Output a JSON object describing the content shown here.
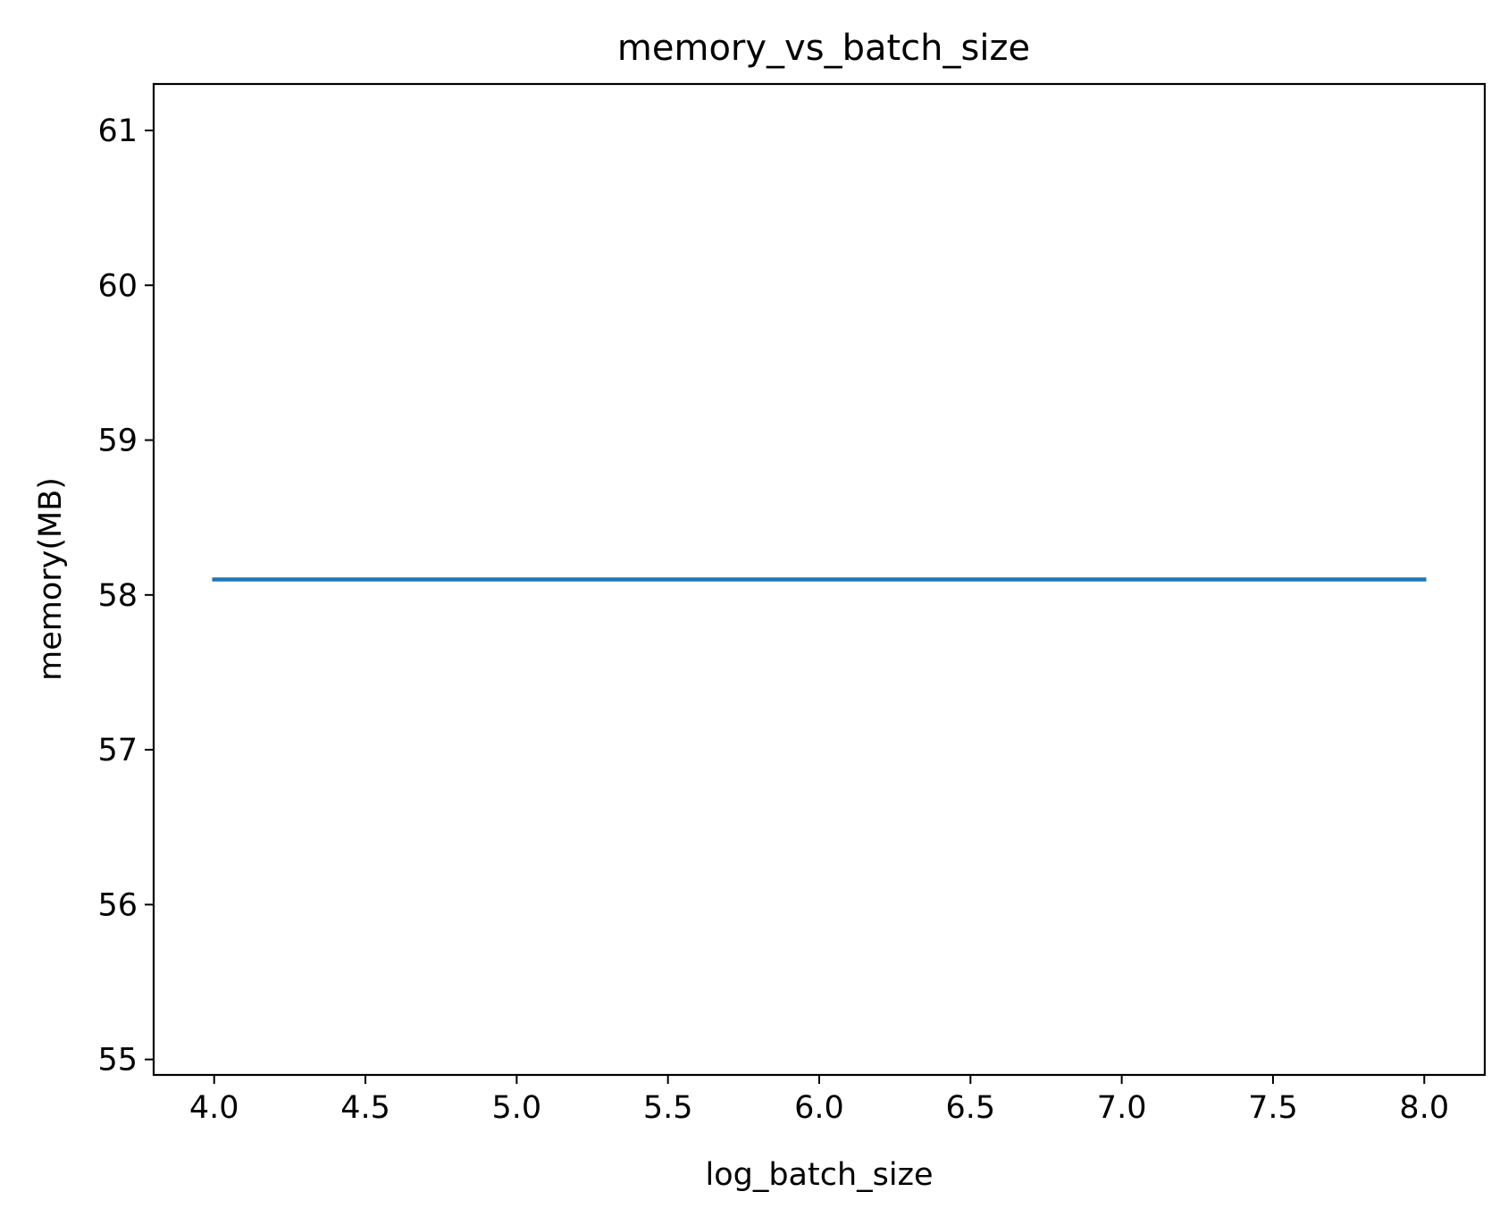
{
  "chart_data": {
    "type": "line",
    "title": "memory_vs_batch_size",
    "xlabel": "log_batch_size",
    "ylabel": "memory(MB)",
    "xlim": [
      3.8,
      8.2
    ],
    "ylim": [
      54.9,
      61.3
    ],
    "xticks": [
      "4.0",
      "4.5",
      "5.0",
      "5.5",
      "6.0",
      "6.5",
      "7.0",
      "7.5",
      "8.0"
    ],
    "yticks": [
      "55",
      "56",
      "57",
      "58",
      "59",
      "60",
      "61"
    ],
    "grid": false,
    "series": [
      {
        "name": "memory",
        "color": "#1f77b4",
        "x": [
          4.0,
          5.0,
          6.0,
          7.0,
          8.0
        ],
        "y": [
          58.1,
          58.1,
          58.1,
          58.1,
          58.1
        ]
      }
    ]
  }
}
